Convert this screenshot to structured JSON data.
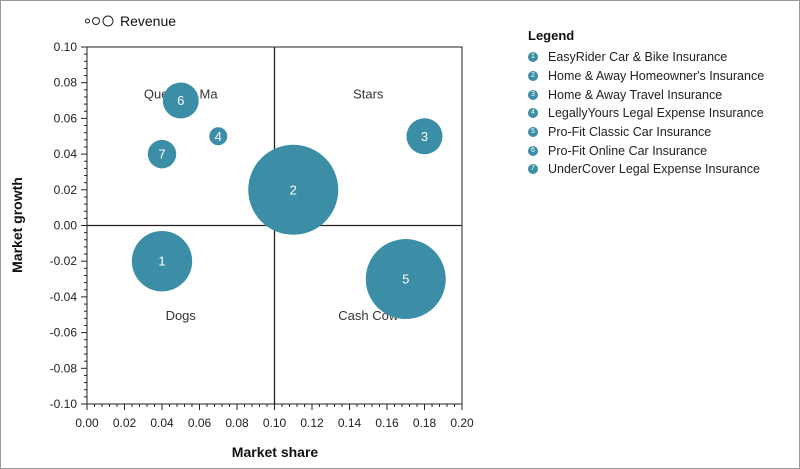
{
  "chart_data": {
    "type": "bubble",
    "xlabel": "Market share",
    "ylabel": "Market growth",
    "xlim": [
      0.0,
      0.2
    ],
    "ylim": [
      -0.1,
      0.1
    ],
    "xticks": [
      "0.00",
      "0.02",
      "0.04",
      "0.06",
      "0.08",
      "0.10",
      "0.12",
      "0.14",
      "0.16",
      "0.18",
      "0.20"
    ],
    "yticks": [
      "0.10",
      "0.08",
      "0.06",
      "0.04",
      "0.02",
      "0.00",
      "-0.02",
      "-0.04",
      "-0.06",
      "-0.08",
      "-0.10"
    ],
    "size_legend": "Revenue",
    "quadrants": [
      "Question Ma",
      "Stars",
      "Dogs",
      "Cash Cow"
    ],
    "legend_title": "Legend",
    "color": "#3b8ea5",
    "series": [
      {
        "id": "1",
        "name": "EasyRider Car & Bike Insurance",
        "x": 0.04,
        "y": -0.02,
        "size": 0.45
      },
      {
        "id": "2",
        "name": "Home & Away Homeowner's Insurance",
        "x": 0.11,
        "y": 0.02,
        "size": 1.0
      },
      {
        "id": "3",
        "name": "Home & Away Travel Insurance",
        "x": 0.18,
        "y": 0.05,
        "size": 0.16
      },
      {
        "id": "4",
        "name": "LegallyYours Legal Expense Insurance",
        "x": 0.07,
        "y": 0.05,
        "size": 0.04
      },
      {
        "id": "5",
        "name": "Pro-Fit Classic Car Insurance",
        "x": 0.17,
        "y": -0.03,
        "size": 0.79
      },
      {
        "id": "6",
        "name": "Pro-Fit Online Car Insurance",
        "x": 0.05,
        "y": 0.07,
        "size": 0.16
      },
      {
        "id": "7",
        "name": "UnderCover Legal Expense Insurance",
        "x": 0.04,
        "y": 0.04,
        "size": 0.1
      }
    ]
  }
}
